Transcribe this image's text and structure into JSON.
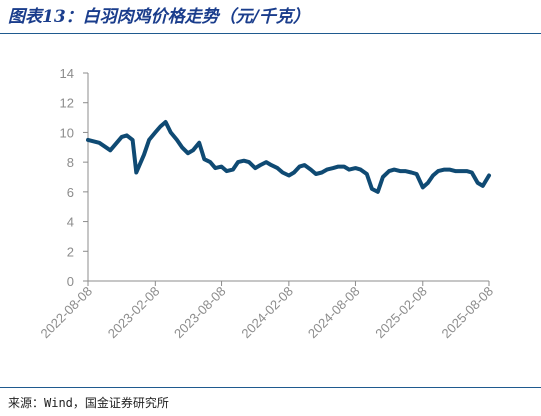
{
  "title": "图表13：白羽肉鸡价格走势（元/千克）",
  "source": "来源：Wind，国金证券研究所",
  "colors": {
    "line": "#0f4a73",
    "axis": "#8c8c8c",
    "title": "#1a3d8c"
  },
  "chart_data": {
    "type": "line",
    "title": "",
    "xlabel": "",
    "ylabel": "",
    "ylim": [
      0,
      14
    ],
    "yticks": [
      "0",
      "2",
      "4",
      "6",
      "8",
      "10",
      "12",
      "14"
    ],
    "xticks": [
      "2022-08-08",
      "2023-02-08",
      "2023-08-08",
      "2024-02-08",
      "2024-08-08",
      "2025-02-08",
      "2025-08-08"
    ],
    "grid": false,
    "series": [
      {
        "name": "",
        "x": [
          "2022-08-08",
          "2022-09-08",
          "2022-10-08",
          "2022-11-08",
          "2022-11-22",
          "2022-12-08",
          "2022-12-18",
          "2023-01-08",
          "2023-01-22",
          "2023-02-08",
          "2023-02-22",
          "2023-03-08",
          "2023-03-22",
          "2023-04-08",
          "2023-04-22",
          "2023-05-08",
          "2023-05-22",
          "2023-06-08",
          "2023-06-22",
          "2023-07-08",
          "2023-07-22",
          "2023-08-08",
          "2023-08-22",
          "2023-09-08",
          "2023-09-22",
          "2023-10-08",
          "2023-10-22",
          "2023-11-08",
          "2023-11-22",
          "2023-12-08",
          "2023-12-22",
          "2024-01-08",
          "2024-01-22",
          "2024-02-08",
          "2024-02-22",
          "2024-03-08",
          "2024-03-22",
          "2024-04-08",
          "2024-04-22",
          "2024-05-08",
          "2024-05-22",
          "2024-06-08",
          "2024-06-22",
          "2024-07-08",
          "2024-07-22",
          "2024-08-08",
          "2024-08-22",
          "2024-09-08",
          "2024-09-22",
          "2024-10-08",
          "2024-10-22",
          "2024-11-08",
          "2024-11-22",
          "2024-12-08",
          "2024-12-22",
          "2025-01-08",
          "2025-01-22",
          "2025-02-08",
          "2025-02-22",
          "2025-03-08",
          "2025-03-22",
          "2025-04-08",
          "2025-04-22",
          "2025-05-08",
          "2025-05-22",
          "2025-06-08",
          "2025-06-22",
          "2025-07-08",
          "2025-07-22",
          "2025-08-08"
        ],
        "y": [
          9.5,
          9.3,
          8.8,
          9.7,
          9.8,
          9.5,
          7.3,
          8.5,
          9.5,
          10.0,
          10.4,
          10.7,
          10.0,
          9.5,
          9.0,
          8.6,
          8.8,
          9.3,
          8.2,
          8.0,
          7.6,
          7.7,
          7.4,
          7.5,
          8.0,
          8.1,
          8.0,
          7.6,
          7.8,
          8.0,
          7.8,
          7.6,
          7.3,
          7.1,
          7.3,
          7.7,
          7.8,
          7.5,
          7.2,
          7.3,
          7.5,
          7.6,
          7.7,
          7.7,
          7.5,
          7.6,
          7.5,
          7.2,
          6.2,
          6.0,
          7.0,
          7.4,
          7.5,
          7.4,
          7.4,
          7.3,
          7.2,
          6.3,
          6.6,
          7.1,
          7.4,
          7.5,
          7.5,
          7.4,
          7.4,
          7.4,
          7.3,
          6.6,
          6.4,
          7.1
        ]
      }
    ]
  }
}
